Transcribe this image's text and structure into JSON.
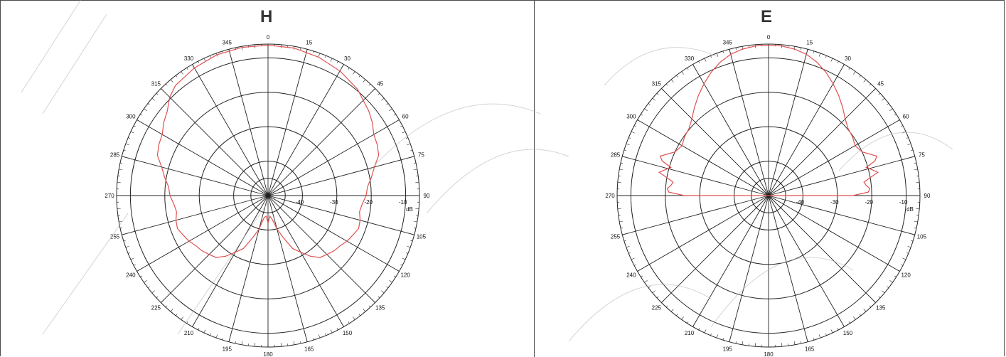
{
  "chart_data": [
    {
      "type": "polar-line",
      "title": "H",
      "angular_ticks": [
        "0",
        "15",
        "30",
        "45",
        "60",
        "75",
        "90",
        "105",
        "120",
        "135",
        "150",
        "165",
        "180",
        "195",
        "210",
        "225",
        "240",
        "255",
        "270",
        "285",
        "300",
        "315",
        "330",
        "345"
      ],
      "radial_ticks": [
        "-40",
        "-30",
        "-20",
        "-10"
      ],
      "radial_unit": "dB",
      "rlim": [
        -50,
        -6
      ],
      "series": [
        {
          "color": "#e05050",
          "angles": [
            0,
            10,
            20,
            30,
            40,
            50,
            55,
            60,
            65,
            70,
            75,
            80,
            85,
            90,
            95,
            100,
            105,
            110,
            115,
            120,
            125,
            130,
            135,
            140,
            145,
            150,
            155,
            160,
            165,
            170,
            175,
            180,
            185,
            190,
            195,
            200,
            205,
            210,
            215,
            220,
            225,
            230,
            235,
            240,
            245,
            250,
            255,
            260,
            265,
            270,
            275,
            280,
            285,
            290,
            295,
            300,
            305,
            310,
            315,
            320,
            330,
            340,
            350
          ],
          "values": [
            -6.3,
            -6.5,
            -7.2,
            -8.2,
            -9.6,
            -11.8,
            -13,
            -14.5,
            -15,
            -15.8,
            -18,
            -19.5,
            -21,
            -21.5,
            -22.5,
            -23,
            -22.3,
            -22,
            -22.8,
            -23.5,
            -24.5,
            -25,
            -25.8,
            -26.5,
            -28.5,
            -31,
            -33,
            -37,
            -40,
            -43,
            -44,
            -42,
            -44,
            -43.5,
            -40,
            -37,
            -33,
            -31,
            -28.5,
            -26.5,
            -25.8,
            -25,
            -24.5,
            -23.5,
            -22.8,
            -22,
            -22.3,
            -23,
            -22.5,
            -21.5,
            -21,
            -19.5,
            -18,
            -15.8,
            -15,
            -14.5,
            -13,
            -11.8,
            -9.6,
            -8.2,
            -7.2,
            -6.5,
            -6.3
          ]
        }
      ]
    },
    {
      "type": "polar-line",
      "title": "E",
      "angular_ticks": [
        "0",
        "15",
        "30",
        "45",
        "60",
        "75",
        "90",
        "105",
        "120",
        "135",
        "150",
        "165",
        "180",
        "195",
        "210",
        "225",
        "240",
        "255",
        "270",
        "285",
        "300",
        "315",
        "330",
        "345"
      ],
      "radial_ticks": [
        "-40",
        "-30",
        "-20",
        "-10"
      ],
      "radial_unit": "dB",
      "rlim": [
        -50,
        -6
      ],
      "series": [
        {
          "color": "#e05050",
          "angles": [
            0,
            5,
            10,
            15,
            20,
            25,
            30,
            35,
            40,
            45,
            50,
            55,
            60,
            65,
            70,
            72,
            74,
            76,
            78,
            80,
            82,
            84,
            86,
            88,
            90,
            270,
            272,
            274,
            276,
            278,
            280,
            282,
            284,
            286,
            288,
            290,
            295,
            300,
            305,
            310,
            315,
            320,
            325,
            330,
            335,
            340,
            345,
            350,
            355
          ],
          "values": [
            -6.3,
            -6.4,
            -6.8,
            -7.5,
            -8.8,
            -10.5,
            -12.5,
            -14.5,
            -16.5,
            -18.5,
            -19.8,
            -20.2,
            -21,
            -20,
            -16.5,
            -17.5,
            -20.5,
            -19,
            -17.5,
            -20,
            -22,
            -21.5,
            -20.5,
            -21,
            -25.5,
            -25.5,
            -21,
            -20.5,
            -21.5,
            -22,
            -20,
            -17.5,
            -19,
            -20.5,
            -17.5,
            -16.5,
            -20,
            -21,
            -20.2,
            -19.8,
            -18.5,
            -16.5,
            -14.5,
            -12.5,
            -10.5,
            -8.8,
            -7.5,
            -6.8,
            -6.4
          ]
        }
      ]
    }
  ]
}
